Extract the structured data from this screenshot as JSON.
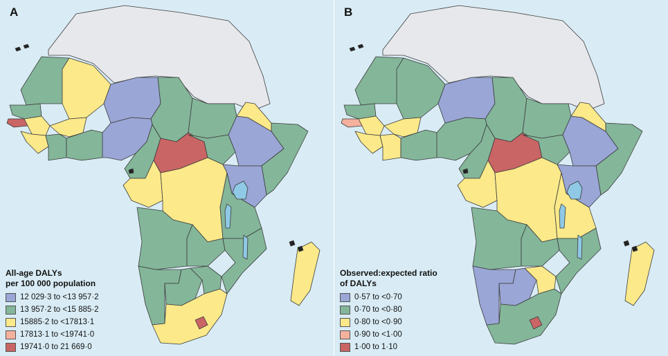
{
  "colors": {
    "background": "#d9ecf5",
    "no_data": "#e7e8ec",
    "class1": "#9aa6d6",
    "class2": "#84b69a",
    "class3": "#fbe98a",
    "class4": "#f4b19d",
    "class5": "#c96565",
    "lake": "#8fc9e6"
  },
  "panels": [
    {
      "letter": "A",
      "legend_title_line1": "All-age DALYs",
      "legend_title_line2": "per 100 000 population",
      "legend": [
        {
          "label": "12 029·3 to <13 957·2",
          "class": "class1"
        },
        {
          "label": "13 957·2 to <15 885·2",
          "class": "class2"
        },
        {
          "label": "15885·2 to <17813·1",
          "class": "class3"
        },
        {
          "label": "17813·1 to <19741·0",
          "class": "class4"
        },
        {
          "label": "19741·0 to 21 669·0",
          "class": "class5"
        }
      ],
      "regions": {
        "north_africa": "no_data",
        "mauritania": "class2",
        "mali": "class3",
        "niger": "class1",
        "chad": "class2",
        "sudan": "class2",
        "senegal": "class2",
        "gambia_guinea_bissau": "class5",
        "guinea": "class3",
        "sierra_leone_liberia": "class3",
        "ivory_coast": "class2",
        "burkina_faso": "class3",
        "ghana_togo_benin": "class2",
        "nigeria": "class1",
        "cameroon": "class2",
        "car": "class5",
        "south_sudan": "class2",
        "ethiopia": "class1",
        "eritrea_djibouti": "class3",
        "somalia": "class2",
        "gabon_congo": "class3",
        "drc": "class3",
        "uganda_kenya": "class1",
        "tanzania": "class2",
        "angola": "class2",
        "zambia": "class2",
        "malawi_mozambique": "class2",
        "namibia": "class2",
        "botswana": "class2",
        "zimbabwe": "class2",
        "south_africa": "class3",
        "lesotho": "class5",
        "madagascar": "class3"
      }
    },
    {
      "letter": "B",
      "legend_title_line1": "Observed:expected ratio",
      "legend_title_line2": "of DALYs",
      "legend": [
        {
          "label": "0·57 to <0·70",
          "class": "class1"
        },
        {
          "label": "0·70 to <0·80",
          "class": "class2"
        },
        {
          "label": "0·80 to <0·90",
          "class": "class3"
        },
        {
          "label": "0·90 to <1·00",
          "class": "class4"
        },
        {
          "label": "1·00 to 1·10",
          "class": "class5"
        }
      ],
      "regions": {
        "north_africa": "no_data",
        "mauritania": "class2",
        "mali": "class2",
        "niger": "class1",
        "chad": "class2",
        "sudan": "class2",
        "senegal": "class2",
        "gambia_guinea_bissau": "class4",
        "guinea": "class3",
        "sierra_leone_liberia": "class3",
        "ivory_coast": "class3",
        "burkina_faso": "class3",
        "ghana_togo_benin": "class2",
        "nigeria": "class2",
        "cameroon": "class2",
        "car": "class5",
        "south_sudan": "class2",
        "ethiopia": "class1",
        "eritrea_djibouti": "class3",
        "somalia": "class2",
        "gabon_congo": "class3",
        "drc": "class3",
        "uganda_kenya": "class1",
        "tanzania": "class3",
        "angola": "class2",
        "zambia": "class2",
        "malawi_mozambique": "class2",
        "namibia": "class1",
        "botswana": "class1",
        "zimbabwe": "class3",
        "south_africa": "class2",
        "lesotho": "class5",
        "madagascar": "class3"
      }
    }
  ]
}
